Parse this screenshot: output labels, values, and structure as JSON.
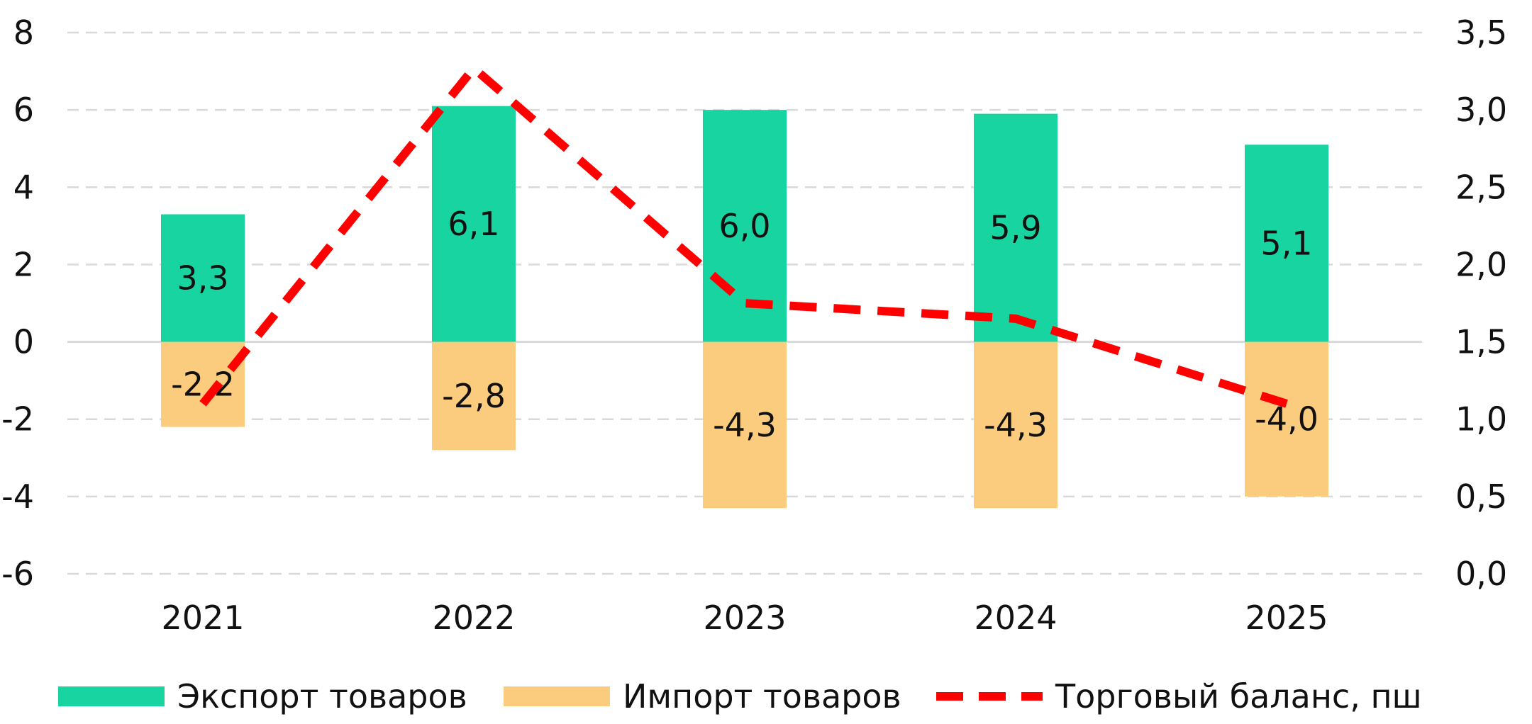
{
  "chart_data": {
    "type": "bar",
    "categories": [
      "2021",
      "2022",
      "2023",
      "2024",
      "2025"
    ],
    "series": [
      {
        "name": "Экспорт товаров",
        "kind": "bar",
        "axis": "left",
        "color": "#18D4A0",
        "values": [
          3.3,
          6.1,
          6.0,
          5.9,
          5.1
        ],
        "labels": [
          "3,3",
          "6,1",
          "6,0",
          "5,9",
          "5,1"
        ]
      },
      {
        "name": "Импорт товаров",
        "kind": "bar",
        "axis": "left",
        "color": "#FBCB7E",
        "values": [
          -2.2,
          -2.8,
          -4.3,
          -4.3,
          -4.0
        ],
        "labels": [
          "-2,2",
          "-2,8",
          "-4,3",
          "-4,3",
          "-4,0"
        ]
      },
      {
        "name": "Торговый баланс, пш",
        "kind": "line",
        "style": "dashed",
        "axis": "right",
        "color": "#FF0000",
        "values": [
          1.1,
          3.27,
          1.75,
          1.65,
          1.1
        ]
      }
    ],
    "y_left": {
      "min": -6,
      "max": 8,
      "step": 2,
      "tick_labels": [
        "-6",
        "-4",
        "-2",
        "0",
        "2",
        "4",
        "6",
        "8"
      ]
    },
    "y_right": {
      "min": 0,
      "max": 3.5,
      "step": 0.5,
      "tick_labels": [
        "0,0",
        "0,5",
        "1,0",
        "1,5",
        "2,0",
        "2,5",
        "3,0",
        "3,5"
      ]
    },
    "grid": true,
    "legend_position": "bottom",
    "title": "",
    "xlabel": "",
    "ylabel": ""
  },
  "legend": {
    "items": [
      {
        "label": "Экспорт товаров",
        "color": "#18D4A0",
        "marker": "box"
      },
      {
        "label": "Импорт товаров",
        "color": "#FBCB7E",
        "marker": "box"
      },
      {
        "label": "Торговый баланс, пш",
        "color": "#FF0000",
        "marker": "dashed-line"
      }
    ]
  },
  "colors": {
    "grid": "#D9D9D9",
    "zero_line": "#D9D9D9",
    "text": "#111111"
  }
}
